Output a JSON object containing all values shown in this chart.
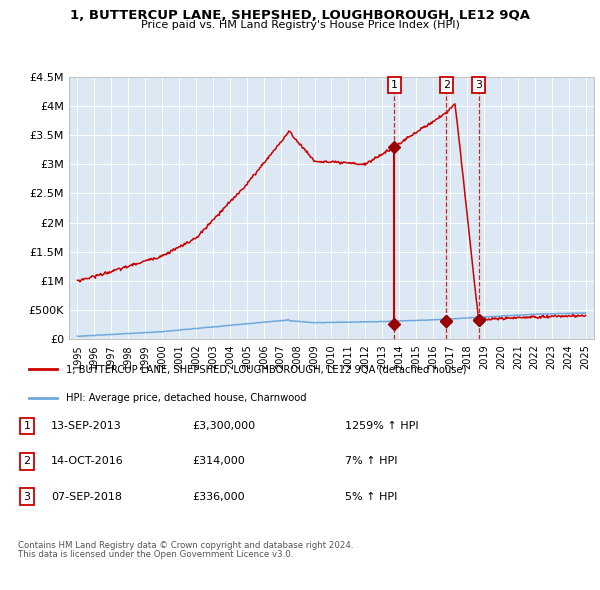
{
  "title": "1, BUTTERCUP LANE, SHEPSHED, LOUGHBOROUGH, LE12 9QA",
  "subtitle": "Price paid vs. HM Land Registry's House Price Index (HPI)",
  "background_color": "#dce9f5",
  "plot_bg_color": "#dce9f5",
  "ylim": [
    0,
    4500000
  ],
  "yticks": [
    0,
    500000,
    1000000,
    1500000,
    2000000,
    2500000,
    3000000,
    3500000,
    4000000,
    4500000
  ],
  "ytick_labels": [
    "£0",
    "£500K",
    "£1M",
    "£1.5M",
    "£2M",
    "£2.5M",
    "£3M",
    "£3.5M",
    "£4M",
    "£4.5M"
  ],
  "xlim_start": 1994.5,
  "xlim_end": 2025.5,
  "xticks": [
    1995,
    1996,
    1997,
    1998,
    1999,
    2000,
    2001,
    2002,
    2003,
    2004,
    2005,
    2006,
    2007,
    2008,
    2009,
    2010,
    2011,
    2012,
    2013,
    2014,
    2015,
    2016,
    2017,
    2018,
    2019,
    2020,
    2021,
    2022,
    2023,
    2024,
    2025
  ],
  "hpi_color": "#6fa8dc",
  "price_color": "#cc0000",
  "sale_marker_color": "#990000",
  "dashed_line_color": "#cc0000",
  "transactions": [
    {
      "id": 1,
      "date": "13-SEP-2013",
      "year": 2013.71,
      "price": 3300000,
      "hpi_value": 261000,
      "pct": "1259%",
      "dir": "↑"
    },
    {
      "id": 2,
      "date": "14-OCT-2016",
      "year": 2016.79,
      "price": 314000,
      "hpi_value": 313000,
      "pct": "7%",
      "dir": "↑"
    },
    {
      "id": 3,
      "date": "07-SEP-2018",
      "year": 2018.69,
      "price": 336000,
      "hpi_value": 330000,
      "pct": "5%",
      "dir": "↑"
    }
  ],
  "legend_entries": [
    "1, BUTTERCUP LANE, SHEPSHED, LOUGHBOROUGH, LE12 9QA (detached house)",
    "HPI: Average price, detached house, Charnwood"
  ],
  "table_rows": [
    {
      "id": "1",
      "date": "13-SEP-2013",
      "price": "£3,300,000",
      "pct": "1259% ↑ HPI"
    },
    {
      "id": "2",
      "date": "14-OCT-2016",
      "price": "£314,000",
      "pct": "7% ↑ HPI"
    },
    {
      "id": "3",
      "date": "07-SEP-2018",
      "price": "£336,000",
      "pct": "5% ↑ HPI"
    }
  ],
  "footnote1": "Contains HM Land Registry data © Crown copyright and database right 2024.",
  "footnote2": "This data is licensed under the Open Government Licence v3.0."
}
